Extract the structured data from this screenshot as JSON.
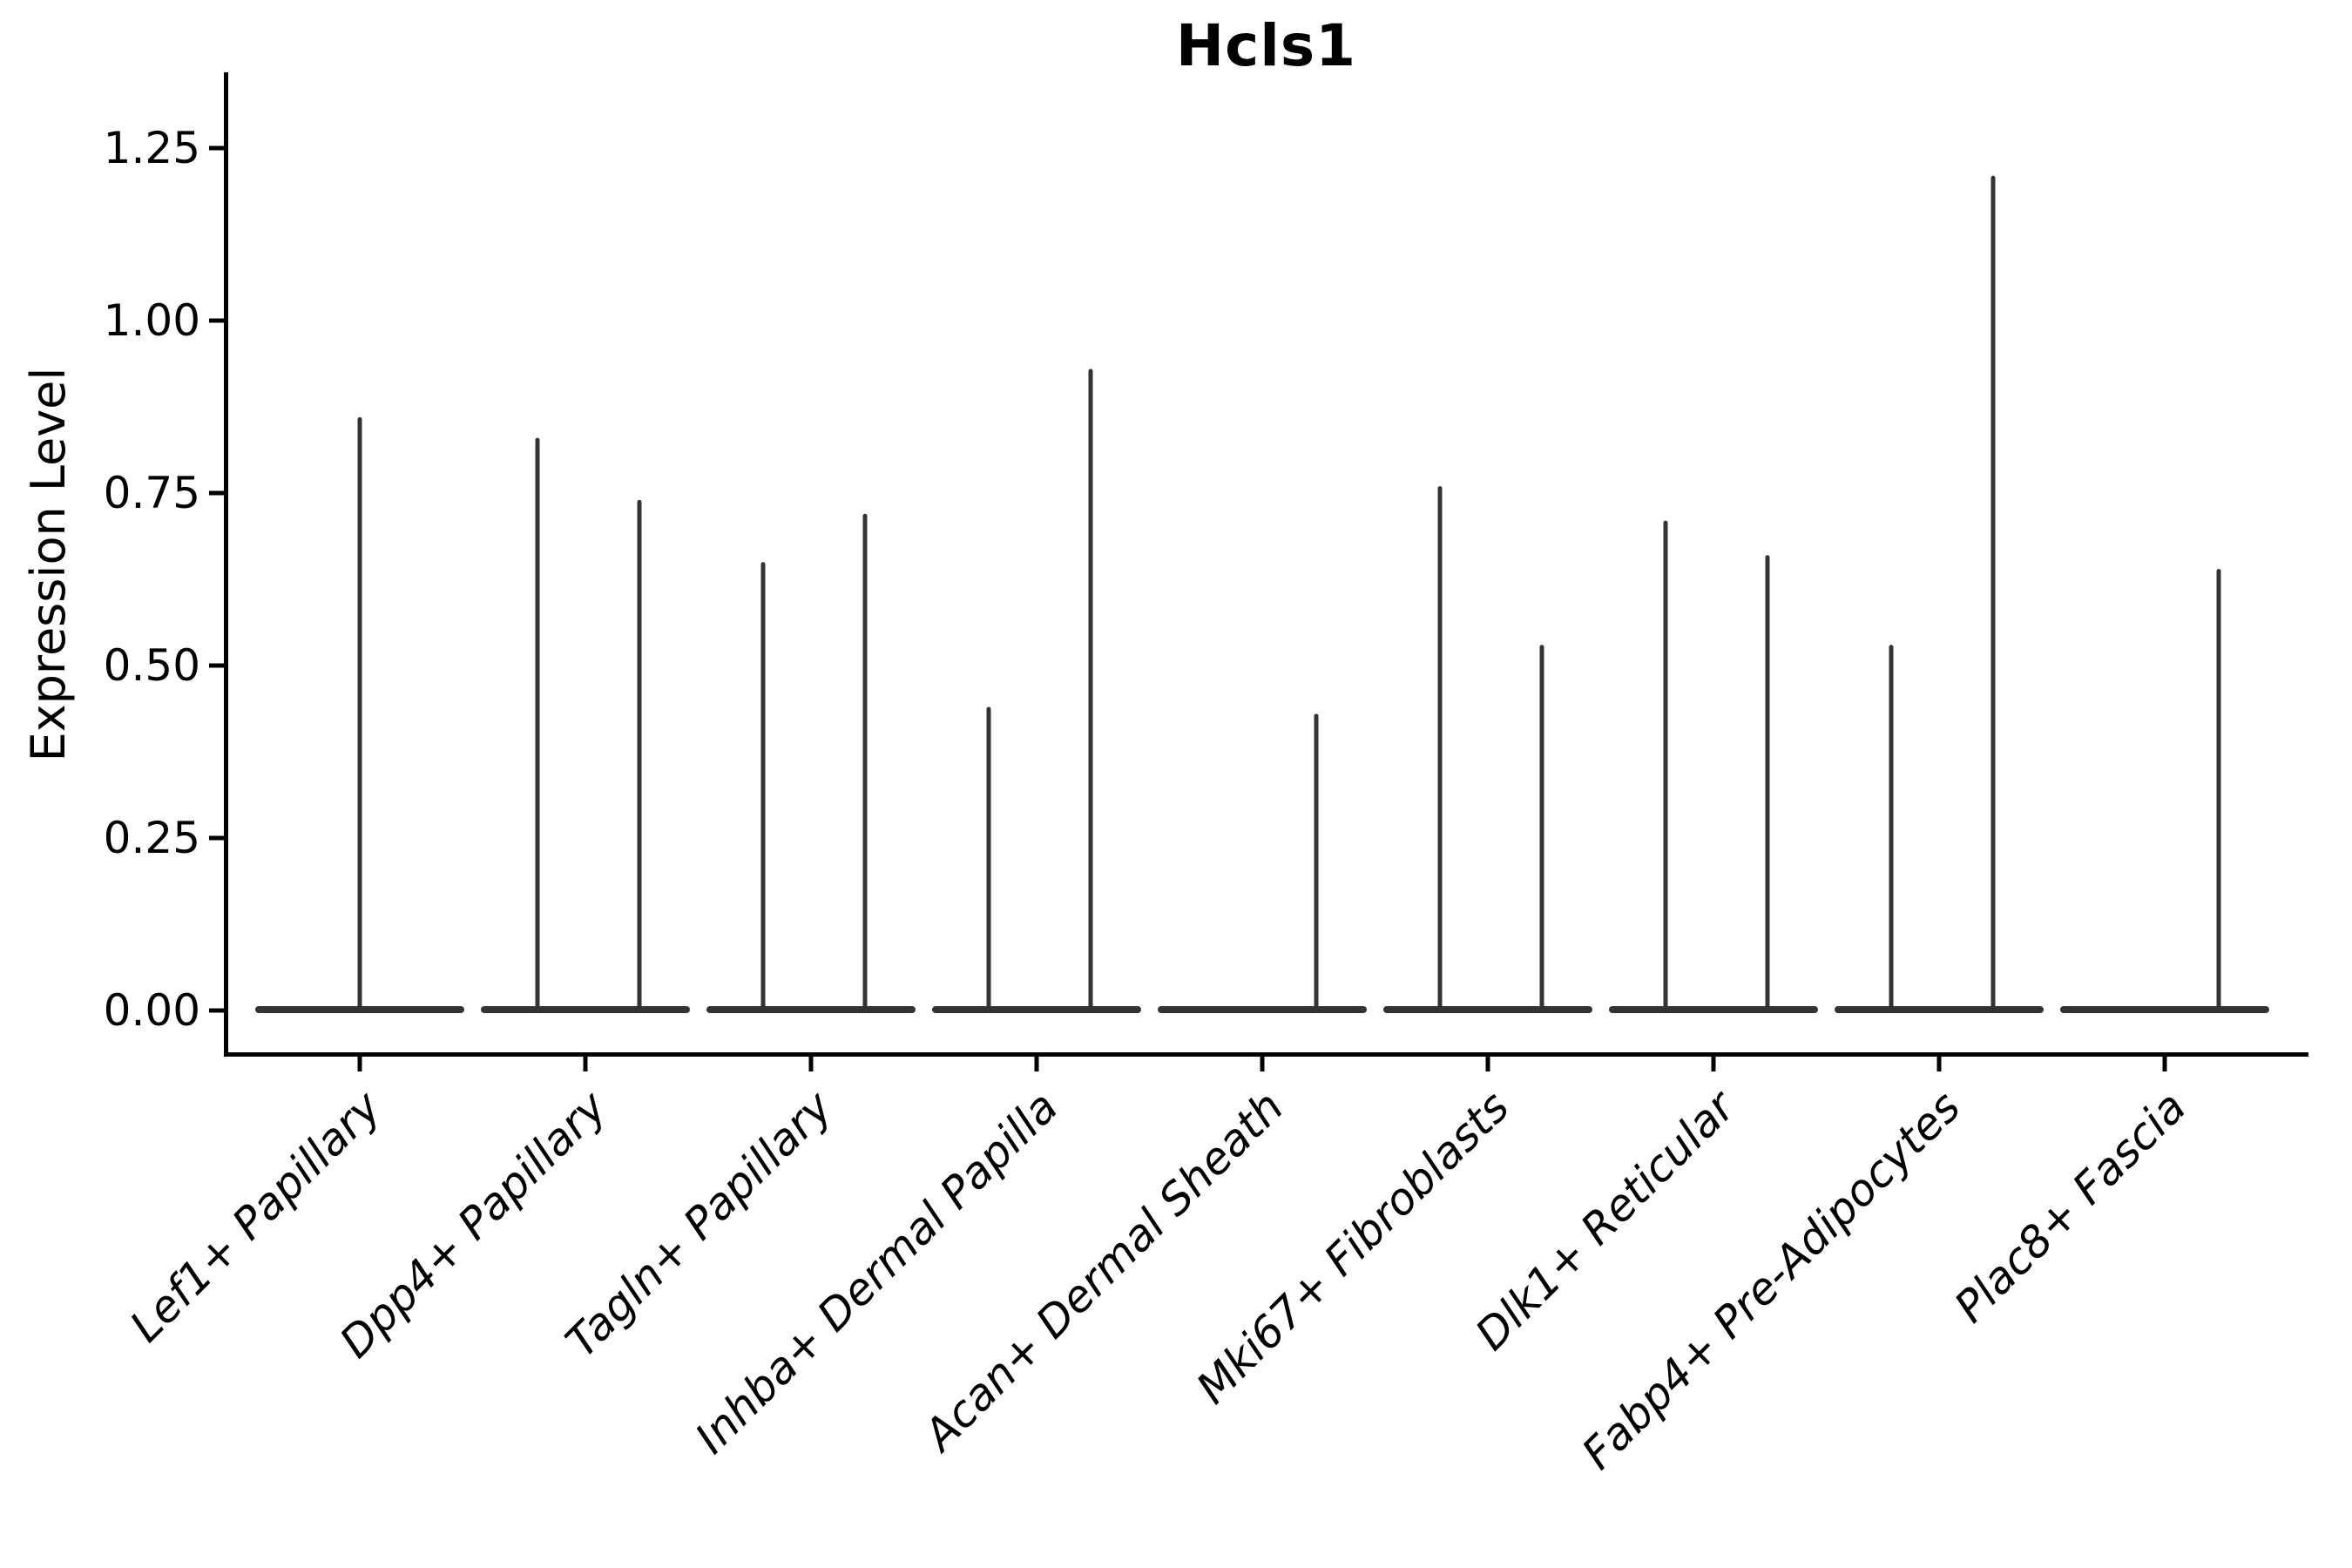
{
  "chart_data": {
    "type": "violin",
    "title": "Hcls1",
    "ylabel": "Expression Level",
    "xlabel": "",
    "ylim": [
      -0.07,
      1.34
    ],
    "grid": false,
    "legend": null,
    "accent_color": "#333333",
    "axis_color": "#000000",
    "y_ticks": [
      {
        "label": "0.00",
        "value": 0.0
      },
      {
        "label": "0.25",
        "value": 0.25
      },
      {
        "label": "0.50",
        "value": 0.5
      },
      {
        "label": "0.75",
        "value": 0.75
      },
      {
        "label": "1.00",
        "value": 1.0
      },
      {
        "label": "1.25",
        "value": 1.25
      }
    ],
    "categories": [
      {
        "label": "Lef1+ Papillary",
        "violins": [
          {
            "position": "center",
            "max": 0.86
          }
        ]
      },
      {
        "label": "Dpp4+ Papillary",
        "violins": [
          {
            "position": "left",
            "max": 0.83
          },
          {
            "position": "right",
            "max": 0.74
          }
        ]
      },
      {
        "label": "Tagln+ Papillary",
        "violins": [
          {
            "position": "left",
            "max": 0.65
          },
          {
            "position": "right",
            "max": 0.72
          }
        ]
      },
      {
        "label": "Inhba+ Dermal Papilla",
        "violins": [
          {
            "position": "left",
            "max": 0.44
          },
          {
            "position": "right",
            "max": 0.93
          }
        ]
      },
      {
        "label": "Acan+ Dermal Sheath",
        "violins": [
          {
            "position": "left",
            "max": 0.0
          },
          {
            "position": "right",
            "max": 0.43
          }
        ]
      },
      {
        "label": "Mki67+ Fibroblasts",
        "violins": [
          {
            "position": "left",
            "max": 0.76
          },
          {
            "position": "right",
            "max": 0.53
          }
        ]
      },
      {
        "label": "Dlk1+ Reticular",
        "violins": [
          {
            "position": "left",
            "max": 0.71
          },
          {
            "position": "right",
            "max": 0.66
          }
        ]
      },
      {
        "label": "Fabp4+ Pre-Adipocytes",
        "violins": [
          {
            "position": "left",
            "max": 0.53
          },
          {
            "position": "right",
            "max": 1.21
          }
        ]
      },
      {
        "label": "Plac8+ Fascia",
        "violins": [
          {
            "position": "left",
            "max": 0.0
          },
          {
            "position": "right",
            "max": 0.64
          }
        ]
      }
    ]
  }
}
